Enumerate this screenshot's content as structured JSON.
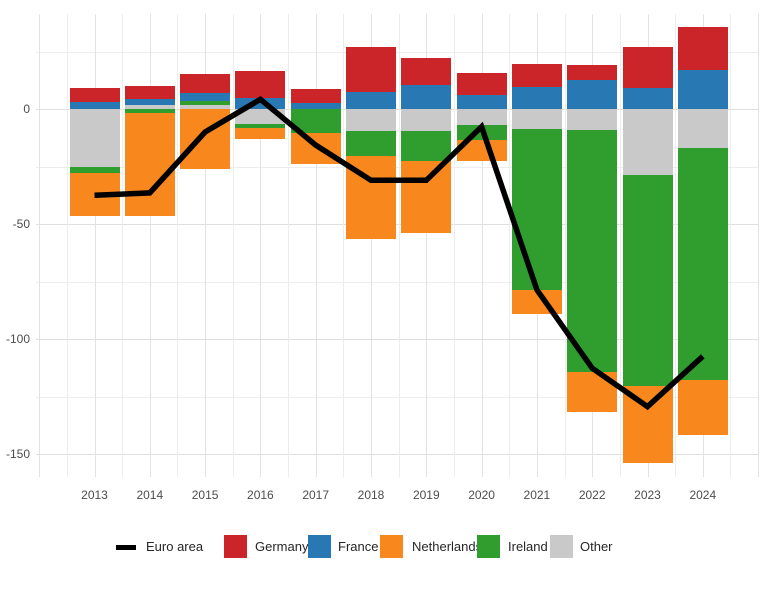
{
  "chart_data": {
    "type": "bar",
    "subtype": "stacked-bars-with-line-overlay",
    "title": "",
    "xlabel": "",
    "ylabel": "",
    "categories": [
      "2013",
      "2014",
      "2015",
      "2016",
      "2017",
      "2018",
      "2019",
      "2020",
      "2021",
      "2022",
      "2023",
      "2024"
    ],
    "series": [
      {
        "name": "Germany",
        "color": "#cb2529",
        "values": [
          5.9,
          5.5,
          8.0,
          11.7,
          6.1,
          19.7,
          11.7,
          9.6,
          10.2,
          6.6,
          18.0,
          18.7
        ]
      },
      {
        "name": "France",
        "color": "#2878b4",
        "values": [
          3.1,
          2.5,
          3.7,
          4.7,
          2.5,
          7.2,
          10.5,
          6.0,
          9.4,
          12.7,
          9.1,
          17.1
        ]
      },
      {
        "name": "Netherlands",
        "color": "#f8871d",
        "values": [
          -18.6,
          -44.6,
          -26.0,
          -4.9,
          -13.4,
          -35.8,
          -31.4,
          -8.8,
          -10.3,
          -17.1,
          -33.8,
          -23.7
        ]
      },
      {
        "name": "Ireland",
        "color": "#2f9e2f",
        "values": [
          -2.6,
          -1.9,
          1.5,
          -1.7,
          -10.4,
          -11.0,
          -13.2,
          -6.6,
          -70.3,
          -105.4,
          -91.7,
          -100.9
        ]
      },
      {
        "name": "Other",
        "color": "#c9c9c9",
        "values": [
          -25.4,
          1.8,
          1.9,
          -6.4,
          0.0,
          -9.6,
          -9.4,
          -7.0,
          -8.5,
          -9.1,
          -28.6,
          -17.0
        ]
      }
    ],
    "line_series": {
      "name": "Euro area",
      "color": "#000000",
      "values": [
        -37.5,
        -36.5,
        -10.0,
        4.2,
        -15.7,
        -31.0,
        -31.0,
        -7.7,
        -78.6,
        -112.7,
        -129.4,
        -107.5
      ]
    },
    "stack_order_from_zero": [
      "Other",
      "Ireland",
      "Netherlands",
      "France",
      "Germany"
    ],
    "yticks": [
      {
        "value": 0,
        "label": "0"
      },
      {
        "value": -50,
        "label": "-50"
      },
      {
        "value": -100,
        "label": "-100"
      },
      {
        "value": -150,
        "label": "-150"
      }
    ],
    "ylim": [
      -160,
      41
    ],
    "grid": true,
    "grid_step_minor": 25,
    "legend_position": "bottom"
  },
  "legend": {
    "items": [
      {
        "label": "Euro area",
        "swatch": "line",
        "color": "#000000"
      },
      {
        "label": "Germany",
        "swatch": "box",
        "color": "#cb2529"
      },
      {
        "label": "France",
        "swatch": "box",
        "color": "#2878b4"
      },
      {
        "label": "Netherlands",
        "swatch": "box",
        "color": "#f8871d"
      },
      {
        "label": "Ireland",
        "swatch": "box",
        "color": "#2f9e2f"
      },
      {
        "label": "Other",
        "swatch": "box",
        "color": "#c9c9c9"
      }
    ]
  },
  "colors": {
    "background": "#ffffff",
    "grid_major": "#dfdfdf",
    "grid_minor": "#ededed",
    "tick_text": "#4d4d4d",
    "legend_text": "#262626"
  }
}
